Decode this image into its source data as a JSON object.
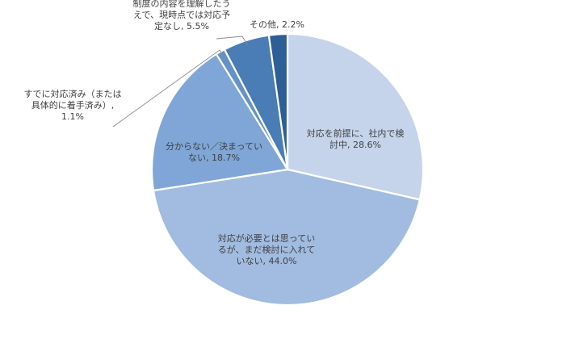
{
  "chart_data": {
    "type": "pie",
    "title": "",
    "start_angle_deg": 0,
    "direction": "clockwise",
    "legend": "none",
    "slices": [
      {
        "label": "対応を前提に、社内で検討中",
        "label_lines": [
          "対応を前提に、社内で検",
          "討中, 28.6%"
        ],
        "value": 28.6,
        "color": "#c5d4eb"
      },
      {
        "label": "対応が必要とは思っているが、まだ検討に入れていない",
        "label_lines": [
          "対応が必要とは思ってい",
          "るが、まだ検討に入れて",
          "いない, 44.0%"
        ],
        "value": 44.0,
        "color": "#a1bce0"
      },
      {
        "label": "分からない／決まっていない",
        "label_lines": [
          "分からない／決まってい",
          "ない, 18.7%"
        ],
        "value": 18.7,
        "color": "#7fa6d6"
      },
      {
        "label": "すでに対応済み（または具体的に着手済み）",
        "label_lines": [
          "すでに対応済み（または",
          "具体的に着手済み）,",
          "1.1%"
        ],
        "value": 1.1,
        "color": "#6592c6"
      },
      {
        "label": "制度の内容を理解したうえで、現時点では対応予定なし",
        "label_lines": [
          "制度の内容を理解したう",
          "えで、現時点では対応予",
          "定なし, 5.5%"
        ],
        "value": 5.5,
        "color": "#4a7cb5"
      },
      {
        "label": "その他",
        "label_lines": [
          "その他, 2.2%"
        ],
        "value": 2.2,
        "color": "#2d5f96"
      }
    ]
  }
}
